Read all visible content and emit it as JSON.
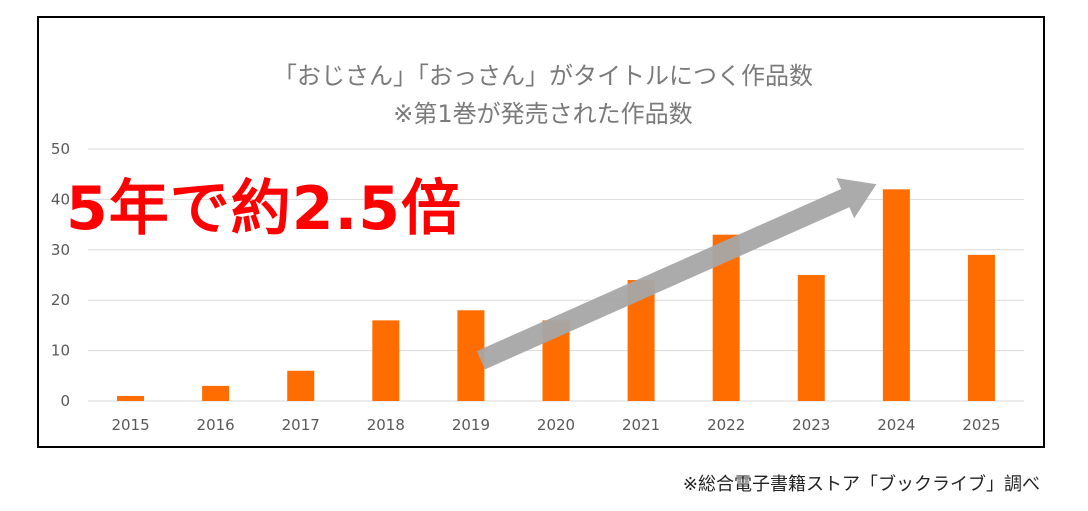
{
  "chart_data": {
    "type": "bar",
    "title": "「おじさん」「おっさん」がタイトルにつく作品数",
    "subtitle": "※第1巻が発売された作品数",
    "categories": [
      "2015",
      "2016",
      "2017",
      "2018",
      "2019",
      "2020",
      "2021",
      "2022",
      "2023",
      "2024",
      "2025"
    ],
    "values": [
      1,
      3,
      6,
      16,
      18,
      16,
      24,
      33,
      25,
      42,
      29
    ],
    "ylim": [
      0,
      50
    ],
    "yticks": [
      0,
      10,
      20,
      30,
      40,
      50
    ],
    "grid": true,
    "legend": "none",
    "annotation": "5年で約2.5倍",
    "arrow": {
      "from_category": "2019",
      "to_category": "2024"
    }
  },
  "colors": {
    "bar": "#ff6d00",
    "annotation": "#ff0000",
    "arrow": "#a6a6a6",
    "grid": "#d9d9d9",
    "title": "#7a7a7a"
  },
  "source_note": "※総合電子書籍ストア「ブックライブ」調べ"
}
